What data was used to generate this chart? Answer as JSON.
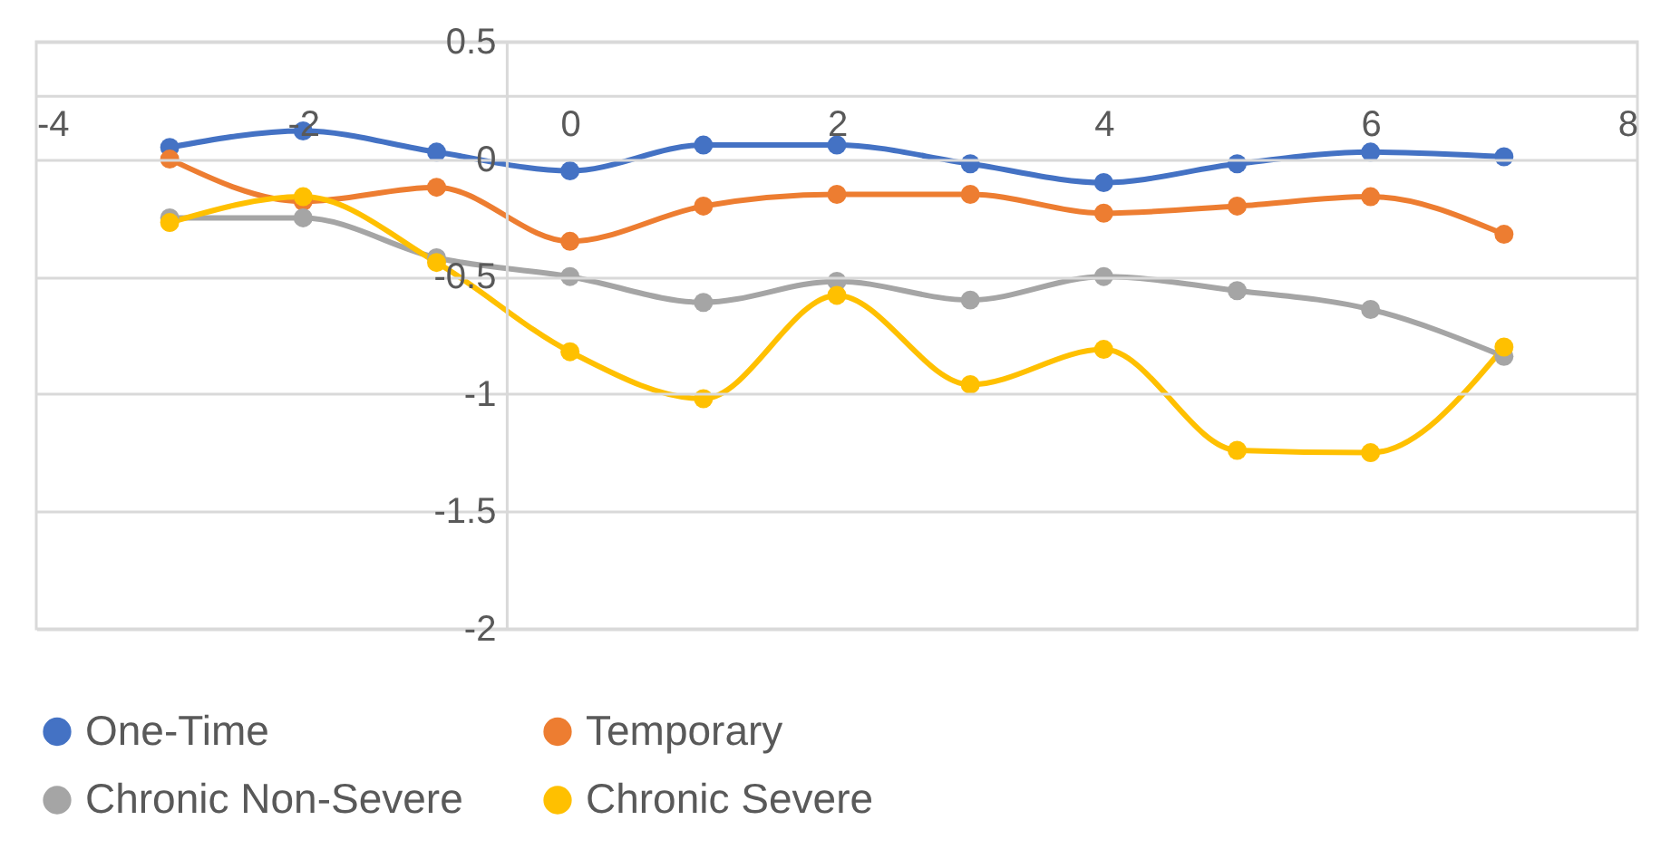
{
  "chart_data": {
    "type": "line",
    "x": [
      -3,
      -2,
      -1,
      0,
      1,
      2,
      3,
      4,
      5,
      6,
      7
    ],
    "series": [
      {
        "name": "One-Time",
        "color": "#4472c4",
        "values": [
          0.05,
          0.12,
          0.03,
          -0.05,
          0.06,
          0.06,
          -0.02,
          -0.1,
          -0.02,
          0.03,
          0.01
        ]
      },
      {
        "name": "Temporary",
        "color": "#ed7d31",
        "values": [
          0,
          -0.18,
          -0.12,
          -0.35,
          -0.2,
          -0.15,
          -0.15,
          -0.23,
          -0.2,
          -0.16,
          -0.32
        ]
      },
      {
        "name": "Chronic Non-Severe",
        "color": "#a5a5a5",
        "values": [
          -0.25,
          -0.25,
          -0.42,
          -0.5,
          -0.61,
          -0.52,
          -0.6,
          -0.5,
          -0.56,
          -0.64,
          -0.84
        ]
      },
      {
        "name": "Chronic Severe",
        "color": "#ffc000",
        "values": [
          -0.27,
          -0.16,
          -0.44,
          -0.82,
          -1.02,
          -0.58,
          -0.96,
          -0.81,
          -1.24,
          -1.25,
          -0.8
        ]
      }
    ],
    "xlim": [
      -4,
      8
    ],
    "xticks": [
      -4,
      -2,
      0,
      2,
      4,
      6,
      8
    ],
    "ylim": [
      -2,
      0.5
    ],
    "yticks": [
      -2,
      -1.5,
      -1,
      -0.5,
      0,
      0.5
    ],
    "grid": "y",
    "legend": "bottom",
    "marker": "circle",
    "line_style": "solid"
  }
}
